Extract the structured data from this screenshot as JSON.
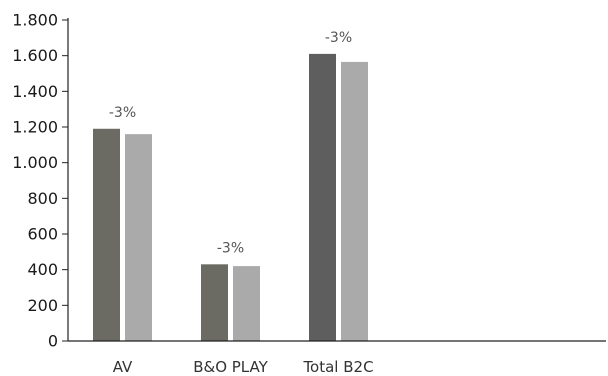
{
  "chart_data": {
    "type": "bar",
    "title": "",
    "xlabel": "",
    "ylabel": "",
    "categories": [
      "AV",
      "B&O PLAY",
      "Total B2C"
    ],
    "series": [
      {
        "values": [
          1190,
          430,
          1610
        ]
      },
      {
        "values": [
          1160,
          420,
          1565
        ]
      }
    ],
    "colors": {
      "series": [
        [
          "#6b6b63",
          "#6b6b63",
          "#5e5e5e"
        ],
        [
          "#aaaaaa",
          "#aaaaaa",
          "#aaaaaa"
        ]
      ],
      "axis": "#222222"
    },
    "annotations": [
      "-3%",
      "-3%",
      "-3%"
    ],
    "ylim": [
      0,
      1800
    ],
    "yticks": [
      0,
      200,
      400,
      600,
      800,
      1000,
      1200,
      1400,
      1600,
      1800
    ],
    "ytick_labels": [
      "0",
      "200",
      "400",
      "600",
      "800",
      "1.000",
      "1.200",
      "1.400",
      "1.600",
      "1.800"
    ],
    "grid": false,
    "legend": "none"
  }
}
